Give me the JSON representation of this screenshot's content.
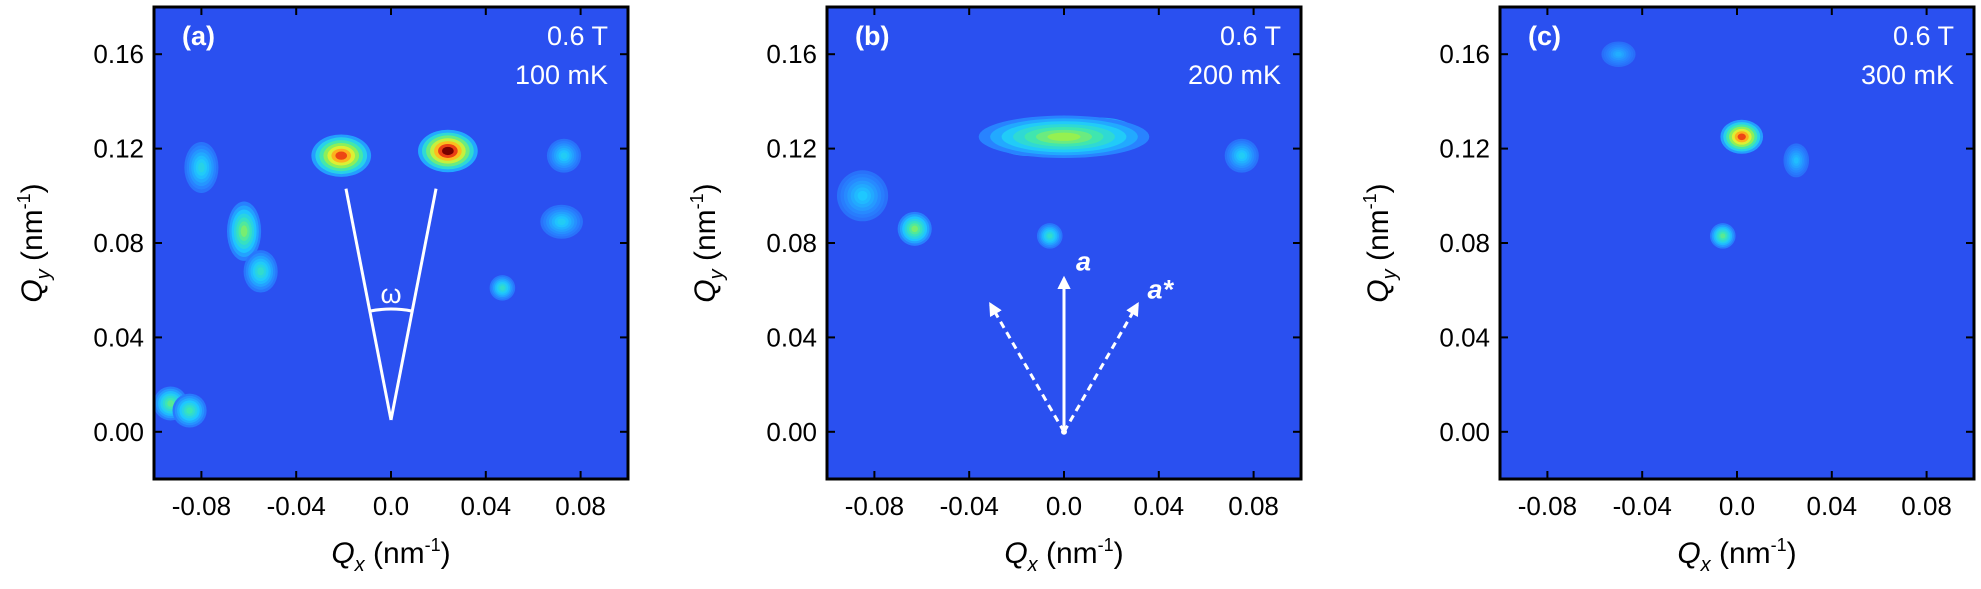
{
  "figure": {
    "colors": {
      "background": "#2a50f0",
      "frame": "#000000",
      "annotation": "#ffffff",
      "tick_text": "#000000"
    }
  },
  "chart_data": [
    {
      "type": "heatmap",
      "panel_label": "(a)",
      "field": "0.6 T",
      "temperature": "100 mK",
      "xlabel": "Q",
      "xlabel_sub": "x",
      "xlabel_unit": " (nm",
      "xlabel_unit_sup": "-1",
      "xlabel_unit_close": ")",
      "ylabel": "Q",
      "ylabel_sub": "y",
      "ylabel_unit": " (nm",
      "ylabel_unit_sup": "-1",
      "ylabel_unit_close": ")",
      "xlim": [
        -0.1,
        0.1
      ],
      "ylim": [
        -0.02,
        0.18
      ],
      "xticks": [
        -0.08,
        -0.04,
        0.0,
        0.04,
        0.08
      ],
      "xtick_labels": [
        "-0.08",
        "-0.04",
        "0.0",
        "0.04",
        "0.08"
      ],
      "yticks": [
        0.0,
        0.04,
        0.08,
        0.12,
        0.16
      ],
      "ytick_labels": [
        "0.00",
        "0.04",
        "0.08",
        "0.12",
        "0.16"
      ],
      "peaks": [
        {
          "qx": -0.021,
          "qy": 0.117,
          "intensity": 0.85,
          "sx": 0.007,
          "sy": 0.005
        },
        {
          "qx": 0.024,
          "qy": 0.119,
          "intensity": 1.0,
          "sx": 0.007,
          "sy": 0.005
        },
        {
          "qx": -0.062,
          "qy": 0.085,
          "intensity": 0.45,
          "sx": 0.004,
          "sy": 0.007
        },
        {
          "qx": -0.093,
          "qy": 0.012,
          "intensity": 0.4,
          "sx": 0.004,
          "sy": 0.004
        },
        {
          "qx": -0.085,
          "qy": 0.009,
          "intensity": 0.35,
          "sx": 0.004,
          "sy": 0.004
        },
        {
          "qx": -0.055,
          "qy": 0.068,
          "intensity": 0.3,
          "sx": 0.004,
          "sy": 0.005
        },
        {
          "qx": 0.047,
          "qy": 0.061,
          "intensity": 0.3,
          "sx": 0.003,
          "sy": 0.003
        },
        {
          "qx": -0.08,
          "qy": 0.112,
          "intensity": 0.25,
          "sx": 0.004,
          "sy": 0.006
        },
        {
          "qx": 0.073,
          "qy": 0.117,
          "intensity": 0.22,
          "sx": 0.004,
          "sy": 0.004
        },
        {
          "qx": 0.072,
          "qy": 0.089,
          "intensity": 0.22,
          "sx": 0.005,
          "sy": 0.004
        }
      ],
      "annotation": {
        "type": "angle",
        "label": "ω",
        "apex": [
          0.0,
          0.005
        ],
        "ends": [
          [
            -0.019,
            0.103
          ],
          [
            0.019,
            0.103
          ]
        ],
        "arc_center_qy": 0.052
      }
    },
    {
      "type": "heatmap",
      "panel_label": "(b)",
      "field": "0.6 T",
      "temperature": "200 mK",
      "xlabel": "Q",
      "xlabel_sub": "x",
      "xlabel_unit": " (nm",
      "xlabel_unit_sup": "-1",
      "xlabel_unit_close": ")",
      "ylabel": "Q",
      "ylabel_sub": "y",
      "ylabel_unit": " (nm",
      "ylabel_unit_sup": "-1",
      "ylabel_unit_close": ")",
      "xlim": [
        -0.1,
        0.1
      ],
      "ylim": [
        -0.02,
        0.18
      ],
      "xticks": [
        -0.08,
        -0.04,
        0.0,
        0.04,
        0.08
      ],
      "xtick_labels": [
        "-0.08",
        "-0.04",
        "0.0",
        "0.04",
        "0.08"
      ],
      "yticks": [
        0.0,
        0.04,
        0.08,
        0.12,
        0.16
      ],
      "ytick_labels": [
        "0.00",
        "0.04",
        "0.08",
        "0.12",
        "0.16"
      ],
      "peaks": [
        {
          "qx": -0.014,
          "qy": 0.124,
          "intensity": 0.8,
          "sx": 0.009,
          "sy": 0.004
        },
        {
          "qx": 0.015,
          "qy": 0.126,
          "intensity": 0.95,
          "sx": 0.009,
          "sy": 0.004
        },
        {
          "qx": 0.0,
          "qy": 0.125,
          "intensity": 0.5,
          "sx": 0.02,
          "sy": 0.005
        },
        {
          "qx": -0.063,
          "qy": 0.086,
          "intensity": 0.45,
          "sx": 0.004,
          "sy": 0.004
        },
        {
          "qx": -0.006,
          "qy": 0.083,
          "intensity": 0.3,
          "sx": 0.003,
          "sy": 0.003
        },
        {
          "qx": 0.075,
          "qy": 0.117,
          "intensity": 0.22,
          "sx": 0.004,
          "sy": 0.004
        },
        {
          "qx": -0.085,
          "qy": 0.1,
          "intensity": 0.2,
          "sx": 0.006,
          "sy": 0.006
        }
      ],
      "annotation": {
        "type": "vectors",
        "origin": [
          0.0,
          0.0
        ],
        "vectors": [
          {
            "label": "a",
            "end": [
              0.0,
              0.065
            ],
            "style": "solid"
          },
          {
            "label": "a*",
            "end": [
              0.031,
              0.054
            ],
            "style": "dashed"
          },
          {
            "label": "",
            "end": [
              -0.031,
              0.054
            ],
            "style": "dashed"
          }
        ]
      }
    },
    {
      "type": "heatmap",
      "panel_label": "(c)",
      "field": "0.6 T",
      "temperature": "300 mK",
      "xlabel": "Q",
      "xlabel_sub": "x",
      "xlabel_unit": " (nm",
      "xlabel_unit_sup": "-1",
      "xlabel_unit_close": ")",
      "ylabel": "Q",
      "ylabel_sub": "y",
      "ylabel_unit": " (nm",
      "ylabel_unit_sup": "-1",
      "ylabel_unit_close": ")",
      "xlim": [
        -0.1,
        0.1
      ],
      "ylim": [
        -0.02,
        0.18
      ],
      "xticks": [
        -0.08,
        -0.04,
        0.0,
        0.04,
        0.08
      ],
      "xtick_labels": [
        "-0.08",
        "-0.04",
        "0.0",
        "0.04",
        "0.08"
      ],
      "yticks": [
        0.0,
        0.04,
        0.08,
        0.12,
        0.16
      ],
      "ytick_labels": [
        "0.00",
        "0.04",
        "0.08",
        "0.12",
        "0.16"
      ],
      "peaks": [
        {
          "qx": 0.002,
          "qy": 0.125,
          "intensity": 0.85,
          "sx": 0.005,
          "sy": 0.004
        },
        {
          "qx": -0.006,
          "qy": 0.083,
          "intensity": 0.4,
          "sx": 0.003,
          "sy": 0.003
        },
        {
          "qx": 0.025,
          "qy": 0.115,
          "intensity": 0.18,
          "sx": 0.003,
          "sy": 0.004
        },
        {
          "qx": -0.05,
          "qy": 0.16,
          "intensity": 0.15,
          "sx": 0.004,
          "sy": 0.003
        }
      ]
    }
  ]
}
